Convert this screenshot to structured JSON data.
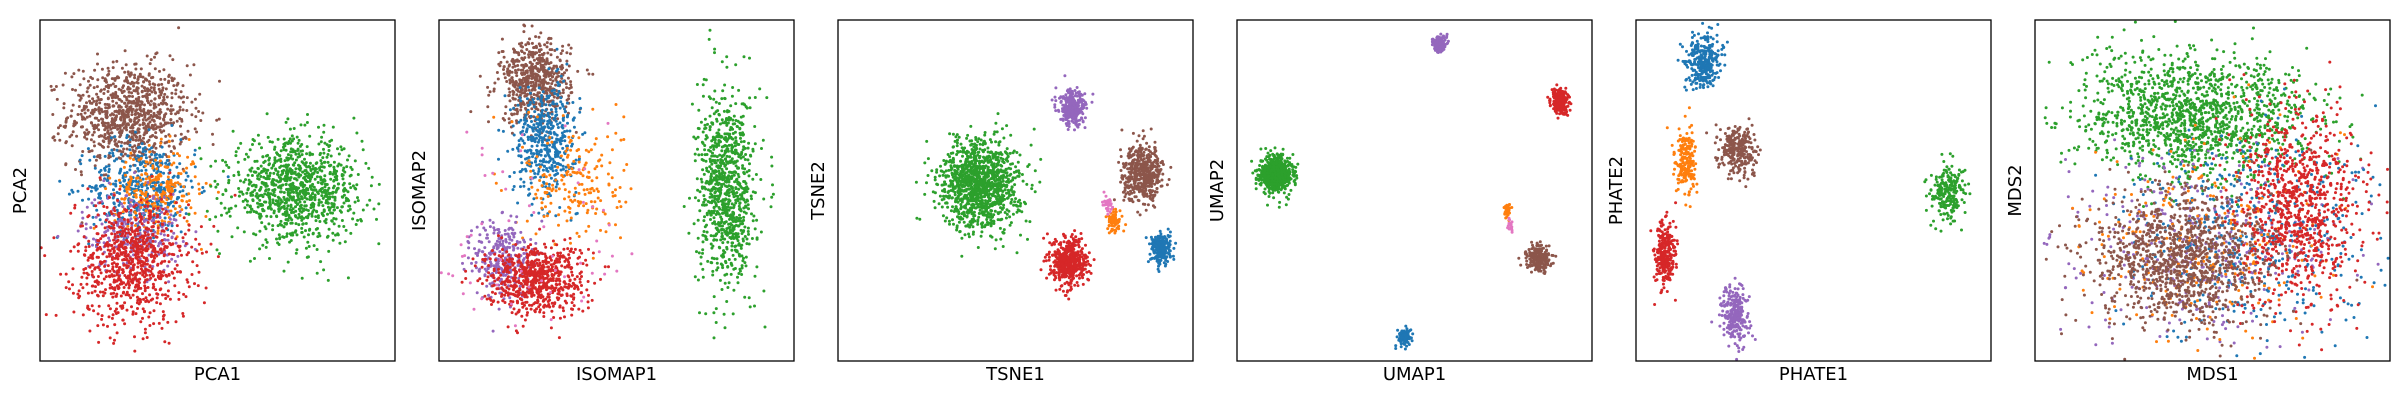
{
  "chart_data": [
    {
      "type": "scatter",
      "xlabel": "PCA1",
      "ylabel": "PCA2",
      "clusters": [
        {
          "color": "#8c564b",
          "cx": 0.25,
          "cy": 0.72,
          "sx": 0.085,
          "sy": 0.075,
          "n": 900
        },
        {
          "color": "#1f77b4",
          "cx": 0.29,
          "cy": 0.51,
          "sx": 0.075,
          "sy": 0.07,
          "n": 450
        },
        {
          "color": "#ff7f0e",
          "cx": 0.33,
          "cy": 0.5,
          "sx": 0.06,
          "sy": 0.06,
          "n": 250
        },
        {
          "color": "#9467bd",
          "cx": 0.26,
          "cy": 0.38,
          "sx": 0.07,
          "sy": 0.06,
          "n": 250
        },
        {
          "color": "#d62728",
          "cx": 0.26,
          "cy": 0.29,
          "sx": 0.08,
          "sy": 0.09,
          "n": 800
        },
        {
          "color": "#2ca02c",
          "cx": 0.72,
          "cy": 0.5,
          "sx": 0.09,
          "sy": 0.075,
          "n": 1000
        }
      ]
    },
    {
      "type": "scatter",
      "xlabel": "ISOMAP1",
      "ylabel": "ISOMAP2",
      "clusters": [
        {
          "color": "#8c564b",
          "cx": 0.27,
          "cy": 0.82,
          "sx": 0.05,
          "sy": 0.06,
          "n": 600
        },
        {
          "color": "#1f77b4",
          "cx": 0.3,
          "cy": 0.65,
          "sx": 0.045,
          "sy": 0.08,
          "n": 450
        },
        {
          "color": "#ff7f0e",
          "cx": 0.38,
          "cy": 0.52,
          "sx": 0.07,
          "sy": 0.09,
          "n": 200
        },
        {
          "color": "#9467bd",
          "cx": 0.18,
          "cy": 0.3,
          "sx": 0.04,
          "sy": 0.06,
          "n": 300
        },
        {
          "color": "#d62728",
          "cx": 0.27,
          "cy": 0.24,
          "sx": 0.07,
          "sy": 0.05,
          "n": 700
        },
        {
          "color": "#e377c2",
          "cx": 0.3,
          "cy": 0.4,
          "sx": 0.15,
          "sy": 0.2,
          "n": 60
        },
        {
          "color": "#2ca02c",
          "cx": 0.81,
          "cy": 0.5,
          "sx": 0.04,
          "sy": 0.14,
          "n": 900
        }
      ]
    },
    {
      "type": "scatter",
      "xlabel": "TSNE1",
      "ylabel": "TSNE2",
      "clusters": [
        {
          "color": "#2ca02c",
          "cx": 0.4,
          "cy": 0.52,
          "sx": 0.055,
          "sy": 0.065,
          "n": 1200
        },
        {
          "color": "#9467bd",
          "cx": 0.66,
          "cy": 0.74,
          "sx": 0.018,
          "sy": 0.025,
          "n": 300
        },
        {
          "color": "#8c564b",
          "cx": 0.86,
          "cy": 0.55,
          "sx": 0.028,
          "sy": 0.04,
          "n": 500
        },
        {
          "color": "#d62728",
          "cx": 0.65,
          "cy": 0.29,
          "sx": 0.025,
          "sy": 0.035,
          "n": 500
        },
        {
          "color": "#1f77b4",
          "cx": 0.91,
          "cy": 0.33,
          "sx": 0.014,
          "sy": 0.022,
          "n": 250
        },
        {
          "color": "#ff7f0e",
          "cx": 0.78,
          "cy": 0.41,
          "sx": 0.01,
          "sy": 0.015,
          "n": 80
        },
        {
          "color": "#e377c2",
          "cx": 0.76,
          "cy": 0.46,
          "sx": 0.007,
          "sy": 0.012,
          "n": 40
        }
      ]
    },
    {
      "type": "scatter",
      "xlabel": "UMAP1",
      "ylabel": "UMAP2",
      "clusters": [
        {
          "color": "#2ca02c",
          "cx": 0.11,
          "cy": 0.55,
          "sx": 0.022,
          "sy": 0.025,
          "n": 700
        },
        {
          "color": "#9467bd",
          "cx": 0.57,
          "cy": 0.93,
          "sx": 0.009,
          "sy": 0.012,
          "n": 150
        },
        {
          "color": "#d62728",
          "cx": 0.91,
          "cy": 0.76,
          "sx": 0.012,
          "sy": 0.018,
          "n": 250
        },
        {
          "color": "#ff7f0e",
          "cx": 0.76,
          "cy": 0.44,
          "sx": 0.005,
          "sy": 0.009,
          "n": 40
        },
        {
          "color": "#e377c2",
          "cx": 0.77,
          "cy": 0.4,
          "sx": 0.004,
          "sy": 0.01,
          "n": 20
        },
        {
          "color": "#8c564b",
          "cx": 0.85,
          "cy": 0.3,
          "sx": 0.016,
          "sy": 0.018,
          "n": 250
        },
        {
          "color": "#1f77b4",
          "cx": 0.47,
          "cy": 0.07,
          "sx": 0.009,
          "sy": 0.012,
          "n": 120
        }
      ]
    },
    {
      "type": "scatter",
      "xlabel": "PHATE1",
      "ylabel": "PHATE2",
      "clusters": [
        {
          "color": "#1f77b4",
          "cx": 0.19,
          "cy": 0.88,
          "sx": 0.025,
          "sy": 0.04,
          "n": 300
        },
        {
          "color": "#8c564b",
          "cx": 0.29,
          "cy": 0.62,
          "sx": 0.025,
          "sy": 0.035,
          "n": 280
        },
        {
          "color": "#ff7f0e",
          "cx": 0.14,
          "cy": 0.58,
          "sx": 0.015,
          "sy": 0.05,
          "n": 200
        },
        {
          "color": "#d62728",
          "cx": 0.08,
          "cy": 0.31,
          "sx": 0.015,
          "sy": 0.05,
          "n": 280
        },
        {
          "color": "#9467bd",
          "cx": 0.28,
          "cy": 0.13,
          "sx": 0.018,
          "sy": 0.045,
          "n": 280
        },
        {
          "color": "#2ca02c",
          "cx": 0.88,
          "cy": 0.49,
          "sx": 0.025,
          "sy": 0.04,
          "n": 220
        }
      ]
    },
    {
      "type": "scatter",
      "xlabel": "MDS1",
      "ylabel": "MDS2",
      "clusters": [
        {
          "color": "#2ca02c",
          "cx": 0.45,
          "cy": 0.72,
          "sx": 0.17,
          "sy": 0.09,
          "n": 1400
        },
        {
          "color": "#9467bd",
          "cx": 0.45,
          "cy": 0.33,
          "sx": 0.18,
          "sy": 0.14,
          "n": 350
        },
        {
          "color": "#1f77b4",
          "cx": 0.62,
          "cy": 0.38,
          "sx": 0.18,
          "sy": 0.15,
          "n": 450
        },
        {
          "color": "#ff7f0e",
          "cx": 0.5,
          "cy": 0.36,
          "sx": 0.18,
          "sy": 0.15,
          "n": 250
        },
        {
          "color": "#d62728",
          "cx": 0.74,
          "cy": 0.45,
          "sx": 0.09,
          "sy": 0.14,
          "n": 900
        },
        {
          "color": "#8c564b",
          "cx": 0.4,
          "cy": 0.3,
          "sx": 0.12,
          "sy": 0.1,
          "n": 1100
        }
      ]
    }
  ]
}
